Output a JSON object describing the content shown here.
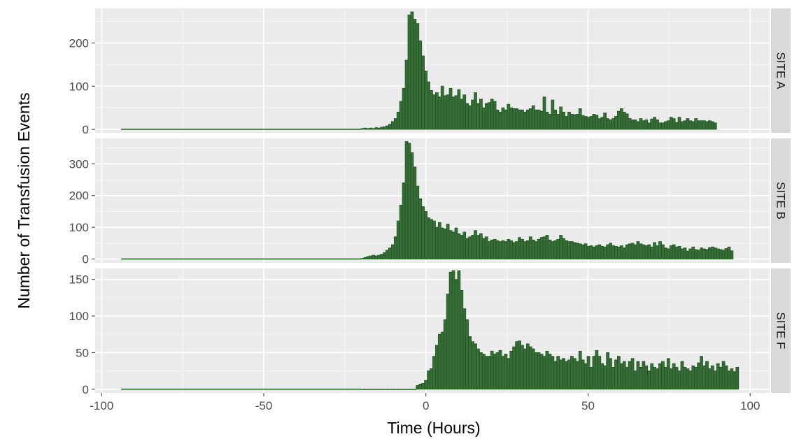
{
  "chart_data": {
    "type": "bar",
    "xlabel": "Time (Hours)",
    "ylabel": "Number of Transfusion Events",
    "xlim": [
      -102,
      106
    ],
    "x_ticks": [
      "-100",
      "-50",
      "0",
      "50",
      "100"
    ],
    "x_tick_values": [
      -100,
      -50,
      0,
      50,
      100
    ],
    "bin_width_hours": 1,
    "x_start": -94,
    "bar_fill": "#3a6b3a",
    "bar_outline": "#1a5c1a",
    "panel_background": "#ebebeb",
    "strip_background": "#d9d9d9",
    "facets": [
      {
        "label": "SITE A",
        "ylim": [
          -8,
          280
        ],
        "y_ticks": [
          "0",
          "100",
          "200"
        ],
        "y_tick_values": [
          0,
          100,
          200
        ],
        "bins_from_minus_20": [
          2,
          3,
          2,
          3,
          2,
          4,
          3,
          5,
          6,
          8,
          12,
          18,
          25,
          40,
          65,
          95,
          160,
          265,
          272,
          255,
          245,
          205,
          170,
          135,
          110,
          90,
          80,
          85,
          75,
          100,
          78,
          80,
          95,
          75,
          78,
          92,
          70,
          80,
          60,
          55,
          68,
          85,
          60,
          70,
          50,
          60,
          62,
          70,
          65,
          45,
          40,
          50,
          45,
          58,
          50,
          48,
          48,
          45,
          45,
          40,
          45,
          48,
          55,
          45,
          45,
          42,
          75,
          40,
          35,
          68,
          45,
          35,
          52,
          40,
          30,
          40,
          35,
          34,
          35,
          48,
          32,
          30,
          28,
          30,
          35,
          33,
          25,
          28,
          38,
          25,
          22,
          25,
          30,
          42,
          48,
          40,
          36,
          25,
          22,
          22,
          18,
          25,
          20,
          22,
          15,
          24,
          28,
          22,
          15,
          15,
          18,
          20,
          28,
          25,
          16,
          28,
          18,
          20,
          25,
          20,
          18,
          25,
          20,
          20,
          20,
          18,
          20,
          18,
          15
        ]
      },
      {
        "label": "SITE B",
        "ylim": [
          -12,
          380
        ],
        "y_ticks": [
          "0",
          "100",
          "200",
          "300"
        ],
        "y_tick_values": [
          0,
          100,
          200,
          300
        ],
        "bins_from_minus_20": [
          2,
          5,
          8,
          10,
          12,
          10,
          12,
          15,
          20,
          28,
          35,
          45,
          70,
          120,
          170,
          240,
          370,
          365,
          335,
          290,
          230,
          190,
          165,
          150,
          130,
          125,
          120,
          100,
          115,
          98,
          95,
          110,
          90,
          85,
          98,
          80,
          75,
          85,
          65,
          70,
          75,
          90,
          75,
          80,
          65,
          70,
          55,
          60,
          62,
          58,
          55,
          58,
          55,
          62,
          58,
          52,
          55,
          68,
          62,
          55,
          58,
          70,
          60,
          55,
          62,
          68,
          70,
          75,
          60,
          55,
          58,
          62,
          75,
          65,
          58,
          55,
          55,
          52,
          50,
          48,
          45,
          48,
          40,
          42,
          38,
          42,
          45,
          40,
          38,
          45,
          50,
          42,
          40,
          38,
          42,
          35,
          45,
          48,
          50,
          45,
          55,
          48,
          45,
          42,
          45,
          38,
          52,
          42,
          55,
          45,
          35,
          32,
          42,
          45,
          38,
          40,
          32,
          35,
          25,
          32,
          38,
          30,
          28,
          35,
          32,
          30,
          36,
          38,
          35,
          32,
          30,
          28,
          33,
          38,
          26
        ]
      },
      {
        "label": "SITE F",
        "ylim": [
          -5,
          165
        ],
        "y_ticks": [
          "0",
          "50",
          "100",
          "150"
        ],
        "y_tick_values": [
          0,
          50,
          100,
          150
        ],
        "bins_from_minus_20": [
          0,
          0,
          0,
          0,
          0,
          0,
          0,
          0,
          0,
          0,
          0,
          0,
          0,
          0,
          0,
          0,
          0,
          0,
          0,
          0,
          5,
          7,
          8,
          12,
          25,
          28,
          45,
          60,
          75,
          78,
          95,
          130,
          160,
          162,
          150,
          162,
          135,
          110,
          95,
          72,
          65,
          62,
          55,
          50,
          48,
          45,
          45,
          52,
          48,
          50,
          53,
          45,
          48,
          42,
          52,
          58,
          65,
          66,
          60,
          55,
          62,
          58,
          55,
          50,
          50,
          48,
          45,
          52,
          48,
          45,
          38,
          45,
          40,
          42,
          38,
          40,
          45,
          42,
          38,
          52,
          40,
          35,
          45,
          30,
          45,
          53,
          45,
          35,
          32,
          50,
          42,
          30,
          40,
          45,
          35,
          38,
          30,
          38,
          42,
          25,
          38,
          30,
          38,
          32,
          25,
          35,
          30,
          28,
          35,
          38,
          30,
          42,
          28,
          35,
          30,
          25,
          38,
          30,
          28,
          25,
          32,
          30,
          36,
          45,
          32,
          38,
          28,
          32,
          25,
          35,
          30,
          38,
          32,
          25,
          28,
          24,
          30,
          26,
          32,
          22
        ]
      }
    ]
  }
}
